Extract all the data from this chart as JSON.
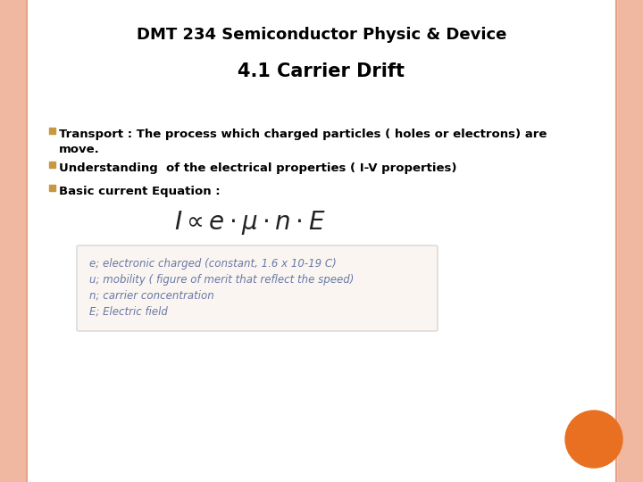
{
  "title_top": "DMT 234 Semiconductor Physic & Device",
  "title_main": "4.1 Carrier Drift",
  "note_lines": [
    "e; electronic charged (constant, 1.6 x 10-19 C)",
    "u; mobility ( figure of merit that reflect the speed)",
    "n; carrier concentration",
    "E; Electric field"
  ],
  "bg_outer": "#f0b8a0",
  "bg_inner": "#ffffff",
  "title_top_color": "#000000",
  "title_main_color": "#000000",
  "bullet_color": "#000000",
  "note_color": "#6878a8",
  "orange_circle_color": "#e87020",
  "border_left_color": "#e8a088",
  "border_right_color": "#e8a088",
  "bullet_sq_color": "#c89840"
}
